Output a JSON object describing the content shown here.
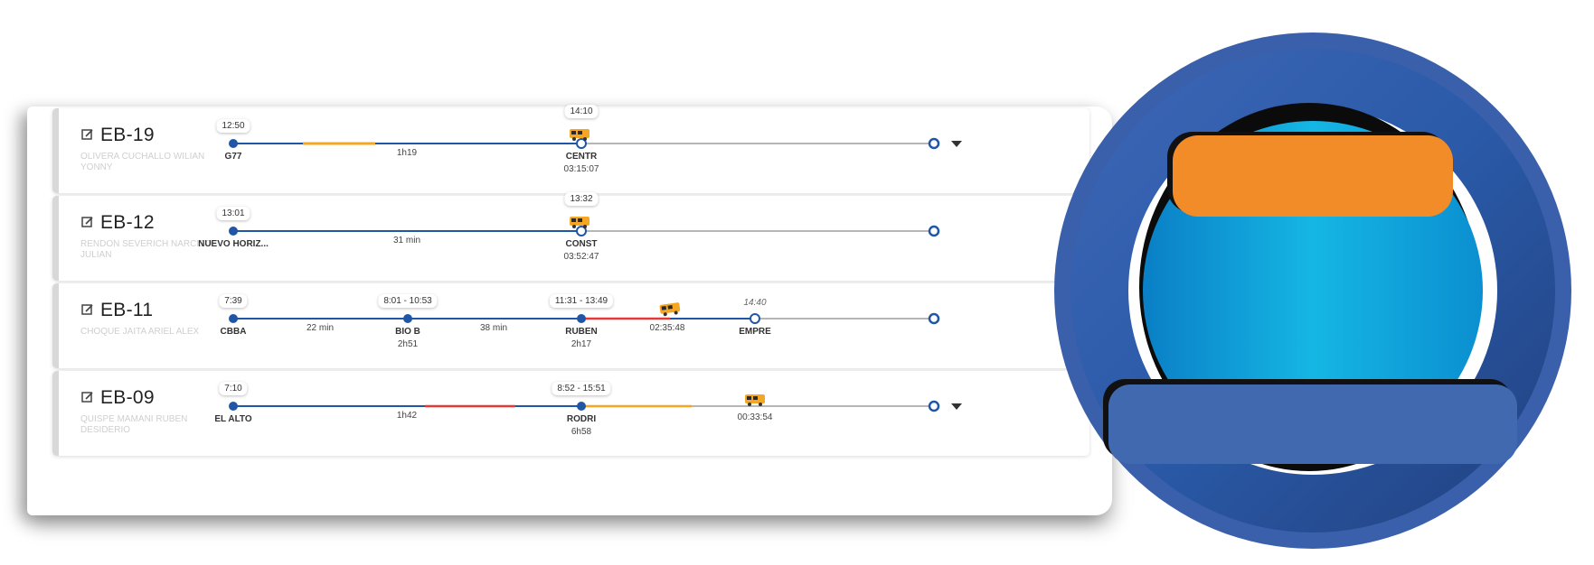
{
  "trips": [
    {
      "id": "EB-19",
      "driver": "OLIVERA CUCHALLO WILIAN YONNY",
      "stops": [
        {
          "label": "G77",
          "time": "12:50",
          "type": "filled",
          "pos": 0
        },
        {
          "label": "CENTR",
          "time": "14:10",
          "sub": "03:15:07",
          "type": "hollow",
          "pos": 0.49
        }
      ],
      "durations": [
        {
          "text": "1h19",
          "pos": 0.245
        }
      ],
      "end_pos": 0.98,
      "has_caret": true
    },
    {
      "id": "EB-12",
      "driver": "RENDON SEVERICH NARCISO JULIAN",
      "stops": [
        {
          "label": "NUEVO HORIZ...",
          "time": "13:01",
          "type": "filled",
          "pos": 0
        },
        {
          "label": "CONST",
          "time": "13:32",
          "sub": "03:52:47",
          "type": "hollow",
          "pos": 0.49
        }
      ],
      "durations": [
        {
          "text": "31 min",
          "pos": 0.245
        }
      ],
      "end_pos": 0.98,
      "has_caret": false
    },
    {
      "id": "EB-11",
      "driver": "CHOQUE JAITA ARIEL ALEX",
      "stops": [
        {
          "label": "CBBA",
          "time": "7:39",
          "type": "filled",
          "pos": 0
        },
        {
          "label": "BIO B",
          "time": "8:01 - 10:53",
          "sub": "2h51",
          "type": "filled",
          "pos": 0.245
        },
        {
          "label": "RUBEN",
          "time": "11:31 - 13:49",
          "sub": "2h17",
          "type": "filled",
          "pos": 0.49
        },
        {
          "label": "EMPRE",
          "time": "14:40",
          "type": "hollow",
          "pos": 0.737,
          "italic_time": true
        }
      ],
      "durations": [
        {
          "text": "22 min",
          "pos": 0.123
        },
        {
          "text": "38 min",
          "pos": 0.368
        },
        {
          "text": "02:35:48",
          "pos": 0.617
        }
      ],
      "end_pos": 0.98,
      "has_caret": false
    },
    {
      "id": "EB-09",
      "driver": "QUISPE MAMANI RUBEN DESIDERIO",
      "stops": [
        {
          "label": "EL ALTO",
          "time": "7:10",
          "type": "filled",
          "pos": 0
        },
        {
          "label": "RODRI",
          "time": "8:52 - 15:51",
          "sub": "6h58",
          "type": "filled",
          "pos": 0.49
        }
      ],
      "durations": [
        {
          "text": "1h42",
          "pos": 0.245
        },
        {
          "text": "00:33:54",
          "pos": 0.737
        }
      ],
      "end_pos": 0.98,
      "has_caret": true
    }
  ],
  "colors": {
    "track_blue": "#1f56a8",
    "track_gray": "#9e9e9e",
    "segment_orange": "#f5a623",
    "segment_red": "#e53935",
    "badge_ring_dark": "#2f4f9e",
    "badge_inner_cyan": "#0aa6dc",
    "badge_orange": "#f28c28",
    "badge_blue_bar": "#4169b0"
  },
  "icons": {
    "edit": "edit-icon",
    "bus": "bus-icon",
    "caret": "chevron-down-icon"
  }
}
